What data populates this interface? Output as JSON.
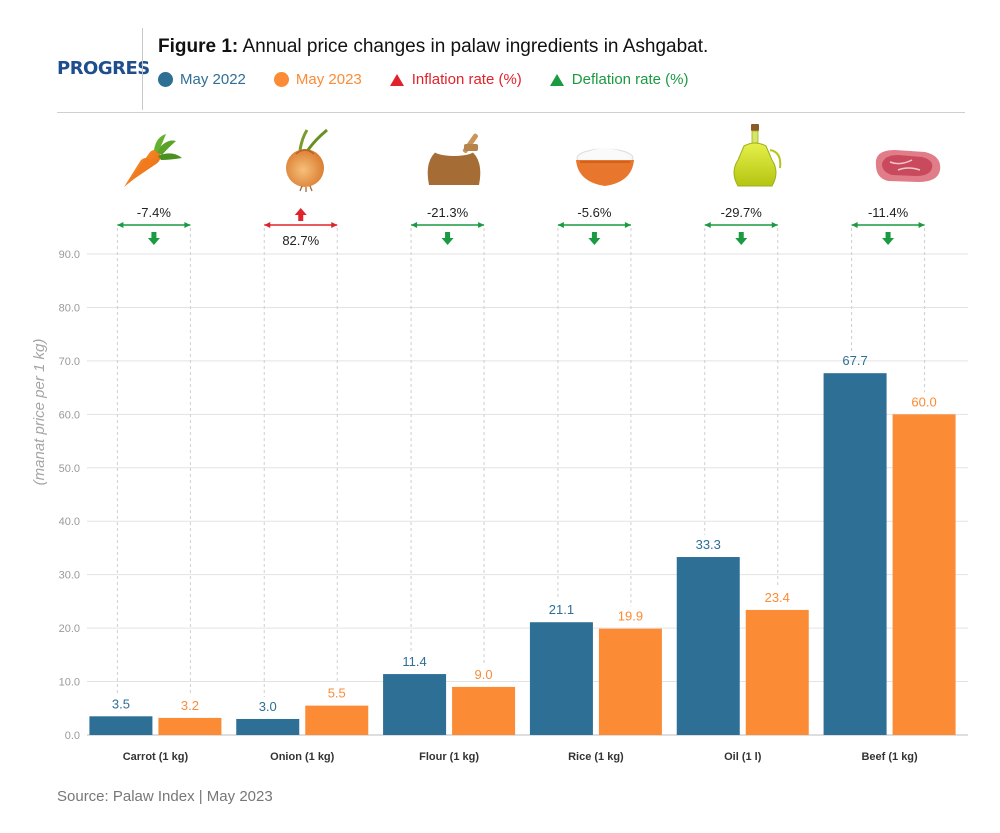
{
  "logo": "PROGRES",
  "header": {
    "title_bold": "Figure 1:",
    "title_rest": " Annual price changes in palaw ingredients in Ashgabat.",
    "legend": [
      {
        "label": "May 2022",
        "color": "#2e6f96",
        "shape": "dot"
      },
      {
        "label": "May 2023",
        "color": "#fb8b35",
        "shape": "dot"
      },
      {
        "label": "Inflation rate (%)",
        "color": "#e1222b",
        "shape": "triangle"
      },
      {
        "label": "Deflation rate (%)",
        "color": "#1a9a41",
        "shape": "triangle"
      }
    ]
  },
  "chart_data": {
    "type": "bar",
    "categories": [
      "Carrot (1 kg)",
      "Onion (1 kg)",
      "Flour (1 kg)",
      "Rice (1 kg)",
      "Oil (1 l)",
      "Beef (1 kg)"
    ],
    "icons": [
      "carrot-icon",
      "onion-icon",
      "flour-sack-icon",
      "rice-bowl-icon",
      "oil-bottle-icon",
      "beef-icon"
    ],
    "series": [
      {
        "name": "May 2022",
        "color": "#2e6f96",
        "values": [
          3.5,
          3.0,
          11.4,
          21.1,
          33.3,
          67.7
        ]
      },
      {
        "name": "May 2023",
        "color": "#fb8b35",
        "values": [
          3.2,
          5.5,
          9.0,
          19.9,
          23.4,
          60.0
        ]
      }
    ],
    "value_labels": [
      [
        "3.5",
        "3.0",
        "11.4",
        "21.1",
        "33.3",
        "67.7"
      ],
      [
        "3.2",
        "5.5",
        "9.0",
        "19.9",
        "23.4",
        "60.0"
      ]
    ],
    "changes": [
      {
        "label": "-7.4%",
        "direction": "down"
      },
      {
        "label": "82.7%",
        "direction": "up"
      },
      {
        "label": "-21.3%",
        "direction": "down"
      },
      {
        "label": "-5.6%",
        "direction": "down"
      },
      {
        "label": "-29.7%",
        "direction": "down"
      },
      {
        "label": "-11.4%",
        "direction": "down"
      }
    ],
    "ylabel": "(manat price per 1 kg)",
    "ylim": [
      0,
      90
    ],
    "yticks": [
      "0.0",
      "10.0",
      "20.0",
      "30.0",
      "40.0",
      "50.0",
      "60.0",
      "70.0",
      "80.0",
      "90.0"
    ],
    "grid": true,
    "colors": {
      "inflation": "#e1222b",
      "deflation": "#1a9a41",
      "grid": "#e3e3e3"
    }
  },
  "source": "Source: Palaw Index | May 2023"
}
